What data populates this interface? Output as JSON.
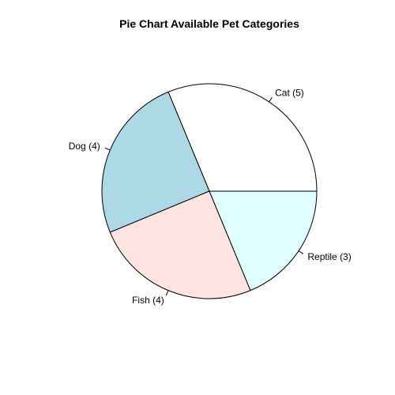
{
  "chart_data": {
    "type": "pie",
    "title": "Pie Chart Available Pet Categories",
    "start_angle_deg": 0,
    "direction": "counterclockwise",
    "slices": [
      {
        "name": "Cat",
        "value": 5,
        "label": "Cat (5)",
        "color": "#ffffff"
      },
      {
        "name": "Dog",
        "value": 4,
        "label": "Dog (4)",
        "color": "#add8e6"
      },
      {
        "name": "Fish",
        "value": 4,
        "label": "Fish (4)",
        "color": "#ffe4e1"
      },
      {
        "name": "Reptile",
        "value": 3,
        "label": "Reptile (3)",
        "color": "#e0ffff"
      }
    ]
  }
}
